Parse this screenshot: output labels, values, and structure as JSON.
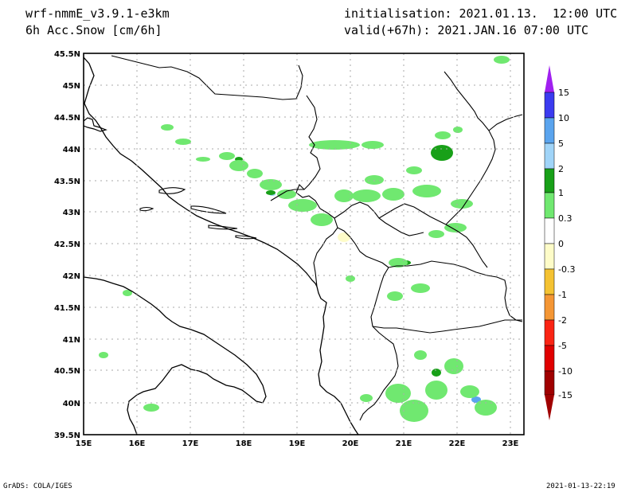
{
  "header": {
    "model": "wrf-nmmE_v3.9.1-e3km",
    "field": "6h Acc.Snow [cm/6h]",
    "init": "initialisation: 2021.01.13.  12:00 UTC",
    "valid": "valid(+67h): 2021.JAN.16 07:00 UTC"
  },
  "footer": {
    "credit": "GrADS: COLA/IGES",
    "timestamp": "2021-01-13-22:19"
  },
  "map": {
    "lat_labels": [
      "45.5N",
      "45N",
      "44.5N",
      "44N",
      "43.5N",
      "43N",
      "42.5N",
      "42N",
      "41.5N",
      "41N",
      "40.5N",
      "40N",
      "39.5N"
    ],
    "lon_labels": [
      "15E",
      "16E",
      "17E",
      "18E",
      "19E",
      "20E",
      "21E",
      "22E",
      "23E"
    ],
    "lat_range": [
      39.5,
      45.5
    ],
    "lon_range": [
      15.0,
      23.25
    ],
    "grid": true,
    "snow_colors": {
      "c03": "#70e870",
      "c1": "#18a018",
      "c2": "#a0d4f8",
      "c5": "#5aa4ee",
      "neg03": "#fefcc8"
    }
  },
  "colorbar": {
    "labels": [
      "15",
      "10",
      "5",
      "2",
      "1",
      "0.3",
      "0",
      "-0.3",
      "-1",
      "-2",
      "-5",
      "-10",
      "-15"
    ],
    "colors": [
      "#3b3bf0",
      "#5aa4ee",
      "#a0d4f8",
      "#18a018",
      "#70e870",
      "#ffffff",
      "#ffffff",
      "#fefcc8",
      "#f4c232",
      "#f49634",
      "#fa2414",
      "#e00000",
      "#a00000"
    ],
    "top_arrow": "#a020f0",
    "bottom_arrow": "#a00000"
  }
}
